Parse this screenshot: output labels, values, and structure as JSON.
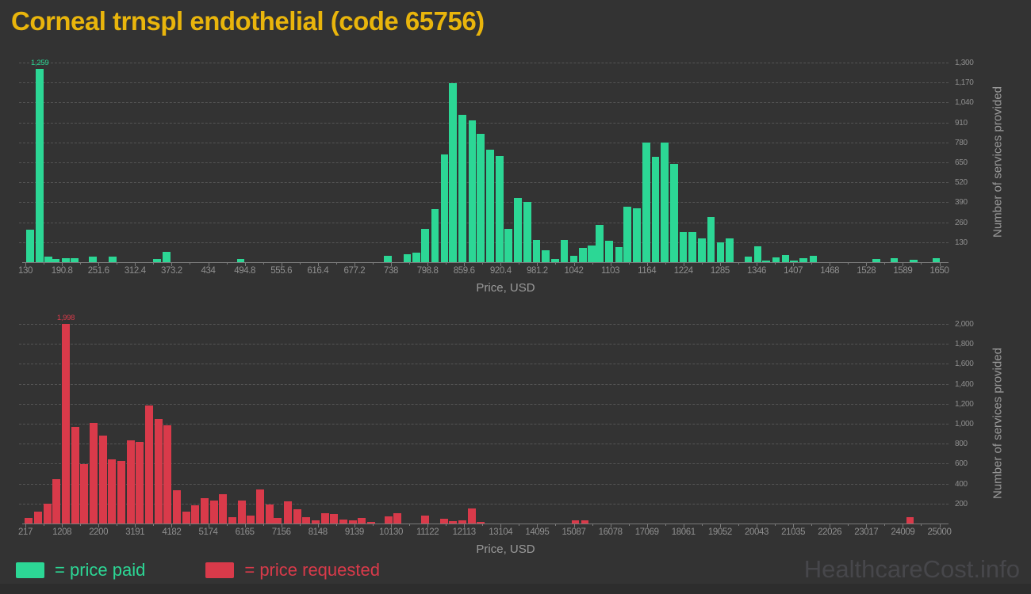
{
  "title": "Corneal trnspl endothelial (code 65756)",
  "watermark": "HealthcareCost.info",
  "legend": {
    "paid_label": "= price paid",
    "requested_label": "= price requested"
  },
  "colors": {
    "background": "#333333",
    "bar_paid": "#2cd795",
    "bar_requested": "#d93a4a",
    "title": "#e9b50c",
    "tick_text": "#8f8f8f",
    "axis_title_text": "#9a9a9a",
    "gridline": "#545454",
    "axis_line": "#7a7a7a",
    "watermark": "#47474b",
    "footer": "#2d2d2d"
  },
  "chart_data": [
    {
      "type": "bar",
      "series_name": "price paid",
      "color_key": "bar_paid",
      "xlabel": "Price, USD",
      "ylabel": "Number of services provided",
      "xlim": [
        130,
        1650
      ],
      "ylim": [
        0,
        1300
      ],
      "grid": true,
      "legend_position": "bottom-left",
      "x_tick_labels": [
        "130",
        "190.8",
        "251.6",
        "312.4",
        "373.2",
        "434",
        "494.8",
        "555.6",
        "616.4",
        "677.2",
        "738",
        "798.8",
        "859.6",
        "920.4",
        "981.2",
        "1042",
        "1103",
        "1164",
        "1224",
        "1285",
        "1346",
        "1407",
        "1468",
        "1528",
        "1589",
        "1650"
      ],
      "y_tick_values": [
        130,
        260,
        390,
        520,
        650,
        780,
        910,
        1040,
        1170,
        1300
      ],
      "y_tick_labels": [
        "130",
        "260",
        "390",
        "520",
        "650",
        "780",
        "910",
        "1,040",
        "1,170",
        "1,300"
      ],
      "peak_annotation": "1,259",
      "points": [
        [
          138,
          210
        ],
        [
          154,
          1259
        ],
        [
          168,
          38
        ],
        [
          181,
          21
        ],
        [
          197,
          26
        ],
        [
          212,
          26
        ],
        [
          242,
          35
        ],
        [
          275,
          35
        ],
        [
          349,
          21
        ],
        [
          365,
          66
        ],
        [
          488,
          23
        ],
        [
          733,
          43
        ],
        [
          765,
          52
        ],
        [
          780,
          61
        ],
        [
          795,
          217
        ],
        [
          811,
          347
        ],
        [
          827,
          700
        ],
        [
          841,
          1165
        ],
        [
          857,
          960
        ],
        [
          873,
          925
        ],
        [
          887,
          835
        ],
        [
          903,
          735
        ],
        [
          919,
          693
        ],
        [
          933,
          217
        ],
        [
          949,
          419
        ],
        [
          965,
          390
        ],
        [
          980,
          147
        ],
        [
          995,
          78
        ],
        [
          1011,
          21
        ],
        [
          1026,
          147
        ],
        [
          1042,
          43
        ],
        [
          1057,
          95
        ],
        [
          1072,
          107
        ],
        [
          1085,
          243
        ],
        [
          1101,
          139
        ],
        [
          1117,
          100
        ],
        [
          1131,
          359
        ],
        [
          1147,
          350
        ],
        [
          1163,
          780
        ],
        [
          1178,
          685
        ],
        [
          1193,
          780
        ],
        [
          1209,
          638
        ],
        [
          1224,
          194
        ],
        [
          1239,
          194
        ],
        [
          1255,
          156
        ],
        [
          1270,
          295
        ],
        [
          1286,
          130
        ],
        [
          1301,
          156
        ],
        [
          1332,
          38
        ],
        [
          1348,
          104
        ],
        [
          1362,
          9
        ],
        [
          1378,
          31
        ],
        [
          1394,
          49
        ],
        [
          1408,
          9
        ],
        [
          1424,
          26
        ],
        [
          1440,
          43
        ],
        [
          1545,
          21
        ],
        [
          1575,
          24
        ],
        [
          1607,
          17
        ],
        [
          1645,
          24
        ]
      ]
    },
    {
      "type": "bar",
      "series_name": "price requested",
      "color_key": "bar_requested",
      "xlabel": "Price, USD",
      "ylabel": "Number of services provided",
      "xlim": [
        217,
        25000
      ],
      "ylim": [
        0,
        2000
      ],
      "grid": true,
      "legend_position": "bottom-left",
      "x_tick_labels": [
        "217",
        "1208",
        "2200",
        "3191",
        "4182",
        "5174",
        "6165",
        "7156",
        "8148",
        "9139",
        "10130",
        "11122",
        "12113",
        "13104",
        "14095",
        "15087",
        "16078",
        "17069",
        "18061",
        "19052",
        "20043",
        "21035",
        "22026",
        "23017",
        "24009",
        "25000"
      ],
      "y_tick_values": [
        200,
        400,
        600,
        800,
        1000,
        1200,
        1400,
        1600,
        1800,
        2000
      ],
      "y_tick_labels": [
        "200",
        "400",
        "600",
        "800",
        "1,000",
        "1,200",
        "1,400",
        "1,600",
        "1,800",
        "2,000"
      ],
      "peak_annotation": "1,998",
      "points": [
        [
          303,
          53
        ],
        [
          561,
          119
        ],
        [
          819,
          199
        ],
        [
          1056,
          445
        ],
        [
          1314,
          1998
        ],
        [
          1572,
          967
        ],
        [
          1809,
          596
        ],
        [
          2067,
          1007
        ],
        [
          2325,
          880
        ],
        [
          2562,
          644
        ],
        [
          2820,
          628
        ],
        [
          3078,
          835
        ],
        [
          3315,
          821
        ],
        [
          3573,
          1179
        ],
        [
          3831,
          1047
        ],
        [
          4068,
          986
        ],
        [
          4326,
          331
        ],
        [
          4584,
          119
        ],
        [
          4820,
          180
        ],
        [
          5078,
          257
        ],
        [
          5336,
          233
        ],
        [
          5573,
          291
        ],
        [
          5831,
          66
        ],
        [
          6089,
          233
        ],
        [
          6326,
          79
        ],
        [
          6585,
          344
        ],
        [
          6842,
          193
        ],
        [
          7057,
          58
        ],
        [
          7337,
          220
        ],
        [
          7595,
          146
        ],
        [
          7832,
          61
        ],
        [
          8090,
          29
        ],
        [
          8348,
          101
        ],
        [
          8585,
          93
        ],
        [
          8843,
          40
        ],
        [
          9101,
          32
        ],
        [
          9338,
          58
        ],
        [
          9596,
          19
        ],
        [
          10069,
          72
        ],
        [
          10306,
          106
        ],
        [
          11059,
          79
        ],
        [
          11575,
          48
        ],
        [
          11812,
          24
        ],
        [
          12070,
          29
        ],
        [
          12328,
          151
        ],
        [
          12565,
          16
        ],
        [
          15125,
          34
        ],
        [
          15383,
          34
        ],
        [
          24200,
          66
        ]
      ]
    }
  ]
}
